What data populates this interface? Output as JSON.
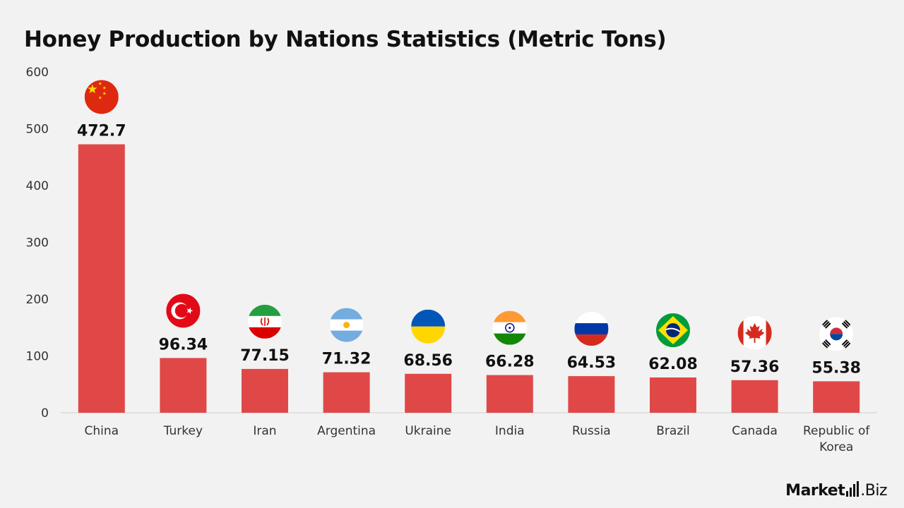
{
  "chart_data": {
    "type": "bar",
    "title": "Honey Production by Nations Statistics (Metric Tons)",
    "categories": [
      "China",
      "Turkey",
      "Iran",
      "Argentina",
      "Ukraine",
      "India",
      "Russia",
      "Brazil",
      "Canada",
      "Republic of Korea"
    ],
    "category_lines": [
      [
        "China"
      ],
      [
        "Turkey"
      ],
      [
        "Iran"
      ],
      [
        "Argentina"
      ],
      [
        "Ukraine"
      ],
      [
        "India"
      ],
      [
        "Russia"
      ],
      [
        "Brazil"
      ],
      [
        "Canada"
      ],
      [
        "Republic of",
        "Korea"
      ]
    ],
    "values": [
      472.7,
      96.34,
      77.15,
      71.32,
      68.56,
      66.28,
      64.53,
      62.08,
      57.36,
      55.38
    ],
    "value_labels": [
      "472.7",
      "96.34",
      "77.15",
      "71.32",
      "68.56",
      "66.28",
      "64.53",
      "62.08",
      "57.36",
      "55.38"
    ],
    "flag_icons": [
      "china-flag-icon",
      "turkey-flag-icon",
      "iran-flag-icon",
      "argentina-flag-icon",
      "ukraine-flag-icon",
      "india-flag-icon",
      "russia-flag-icon",
      "brazil-flag-icon",
      "canada-flag-icon",
      "south-korea-flag-icon"
    ],
    "ylim": [
      0,
      600
    ],
    "yticks": [
      0,
      100,
      200,
      300,
      400,
      500,
      600
    ],
    "xlabel": "",
    "ylabel": "",
    "grid": false,
    "bar_color": "#e04848",
    "legend": "none"
  },
  "brand": {
    "name_bold": "Market",
    "name_light": ".Biz"
  }
}
